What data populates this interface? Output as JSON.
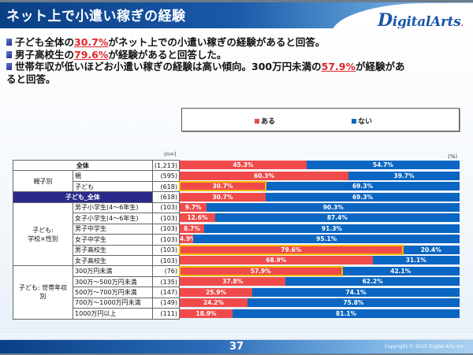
{
  "header": {
    "title": "ネット上で小遣い稼ぎの経験",
    "logo_initial": "D",
    "logo_rest": "igitalArts",
    "logo_dot": "."
  },
  "bullets": [
    {
      "pre": "子ども全体の",
      "hl": "30.7%",
      "post": "がネット上での小遣い稼ぎの経験があると回答。",
      "cont": ""
    },
    {
      "pre": "男子高校生の",
      "hl": "79.6%",
      "post": "が経験があると回答した。",
      "cont": ""
    },
    {
      "pre": "世帯年収が低いほどお小遣い稼ぎの経験は高い傾向。300万円未満の",
      "hl": "57.9%",
      "post": "が経験があ",
      "cont": "ると回答。"
    }
  ],
  "colors": {
    "yes": "#f04a4a",
    "no": "#0a66c2",
    "highlight": "#f5b800",
    "group_highlight": "#2a2a8a"
  },
  "chart_data": {
    "type": "bar",
    "orientation": "horizontal-stacked-100",
    "legend": {
      "position": "top",
      "entries": [
        "ある",
        "ない"
      ]
    },
    "n_label": "(n=)",
    "unit_label": "(%)",
    "xlim": [
      0,
      100
    ],
    "series": [
      {
        "name": "ある",
        "color": "#f04a4a"
      },
      {
        "name": "ない",
        "color": "#0a66c2"
      }
    ],
    "groups": [
      {
        "label": "全体",
        "rows": [
          {
            "label": "全体",
            "n": "(1,213)",
            "yes": 45.3,
            "no": 54.7,
            "full": true
          }
        ]
      },
      {
        "label": "親子別",
        "rows": [
          {
            "label": "親",
            "n": "(595)",
            "yes": 60.3,
            "no": 39.7
          },
          {
            "label": "子ども",
            "n": "(618)",
            "yes": 30.7,
            "no": 69.3,
            "highlight": true
          }
        ]
      },
      {
        "label": "子ども_全体",
        "rows": [
          {
            "label": "子ども_全体",
            "n": "(618)",
            "yes": 30.7,
            "no": 69.3,
            "full": true,
            "group_highlight": true
          }
        ]
      },
      {
        "label": "子ども:\n学校×性別",
        "rows": [
          {
            "label": "男子小学生(4〜6年生)",
            "n": "(103)",
            "yes": 9.7,
            "no": 90.3
          },
          {
            "label": "女子小学生(4〜6年生)",
            "n": "(103)",
            "yes": 12.6,
            "no": 87.4
          },
          {
            "label": "男子中学生",
            "n": "(103)",
            "yes": 8.7,
            "no": 91.3
          },
          {
            "label": "女子中学生",
            "n": "(103)",
            "yes": 4.9,
            "no": 95.1
          },
          {
            "label": "男子高校生",
            "n": "(103)",
            "yes": 79.6,
            "no": 20.4,
            "highlight": true
          },
          {
            "label": "女子高校生",
            "n": "(103)",
            "yes": 68.9,
            "no": 31.1
          }
        ]
      },
      {
        "label": "子ども: 世帯年収\n別",
        "rows": [
          {
            "label": "300万円未満",
            "n": "(76)",
            "yes": 57.9,
            "no": 42.1,
            "highlight": true
          },
          {
            "label": "300万〜500万円未満",
            "n": "(135)",
            "yes": 37.8,
            "no": 62.2
          },
          {
            "label": "500万〜700万円未満",
            "n": "(147)",
            "yes": 25.9,
            "no": 74.1
          },
          {
            "label": "700万〜1000万円未満",
            "n": "(149)",
            "yes": 24.2,
            "no": 75.8
          },
          {
            "label": "1000万円以上",
            "n": "(111)",
            "yes": 18.9,
            "no": 81.1
          }
        ]
      }
    ]
  },
  "footer": {
    "page_number": "37",
    "copyright": "Copyright © 2015 Digital Arts Inc."
  }
}
